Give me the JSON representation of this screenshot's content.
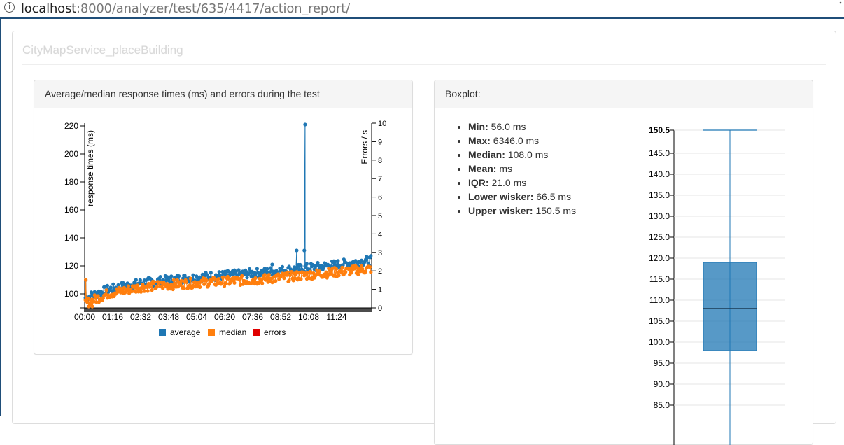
{
  "browser": {
    "url_host": "localhost",
    "url_path": ":8000/analyzer/test/635/4417/action_report/"
  },
  "page": {
    "title": "CityMapService_placeBuilding"
  },
  "response_panel": {
    "heading": "Average/median response times (ms) and errors during the test"
  },
  "boxplot_panel": {
    "heading": "Boxplot:",
    "stats": [
      {
        "label": "Min:",
        "value": "56.0 ms"
      },
      {
        "label": "Max:",
        "value": "6346.0 ms"
      },
      {
        "label": "Median:",
        "value": "108.0 ms"
      },
      {
        "label": "Mean:",
        "value": "ms"
      },
      {
        "label": "IQR:",
        "value": "21.0 ms"
      },
      {
        "label": "Lower wisker:",
        "value": "66.5 ms"
      },
      {
        "label": "Upper wisker:",
        "value": "150.5 ms"
      }
    ]
  },
  "chart_data": [
    {
      "type": "scatter",
      "title": "",
      "xlabel": "",
      "ylabel": "response times (ms)",
      "y2label": "Errors / s",
      "ylim": [
        90,
        222
      ],
      "y2lim": [
        0,
        10
      ],
      "x_tick_labels": [
        "00:00",
        "01:16",
        "02:32",
        "03:48",
        "05:04",
        "06:20",
        "07:36",
        "08:52",
        "10:08",
        "11:24"
      ],
      "y_ticks": [
        100,
        120,
        140,
        160,
        180,
        200,
        220
      ],
      "y2_ticks": [
        0,
        1,
        2,
        3,
        4,
        5,
        6,
        7,
        8,
        9,
        10
      ],
      "x_range_seconds": [
        0,
        750
      ],
      "legend": {
        "placement": "bottom-center",
        "entries": [
          "average",
          "median",
          "errors"
        ]
      },
      "colors": {
        "average": "#1f77b4",
        "median": "#ff7f0e",
        "errors": "#e00000"
      },
      "series": [
        {
          "name": "average",
          "trend": {
            "x": [
              0,
              60,
              150,
              300,
              450,
              600,
              750
            ],
            "y": [
              97,
              103,
              108,
              112,
              115,
              119,
              124
            ]
          },
          "outliers": [
            {
              "x": 3,
              "y": 110
            },
            {
              "x": 490,
              "y": 121
            },
            {
              "x": 554,
              "y": 131
            },
            {
              "x": 574,
              "y": 131
            },
            {
              "x": 576,
              "y": 221
            }
          ]
        },
        {
          "name": "median",
          "trend": {
            "x": [
              0,
              60,
              150,
              300,
              450,
              600,
              750
            ],
            "y": [
              93,
              100,
              105,
              108,
              110,
              114,
              118
            ]
          },
          "outliers": [
            {
              "x": 3,
              "y": 110
            },
            {
              "x": 20,
              "y": 85
            }
          ]
        },
        {
          "name": "errors",
          "values_per_second": 0
        }
      ]
    },
    {
      "type": "box",
      "title": "",
      "ylim": [
        84,
        150.5
      ],
      "y_ticks": [
        85.0,
        90.0,
        95.0,
        100.0,
        105.0,
        110.0,
        115.0,
        120.0,
        125.0,
        130.0,
        135.0,
        140.0,
        145.0,
        150.5
      ],
      "lower_whisker": 66.5,
      "q1": 98.0,
      "median": 108.0,
      "q3": 119.0,
      "upper_whisker": 150.5,
      "color": "#1f77b4"
    }
  ]
}
